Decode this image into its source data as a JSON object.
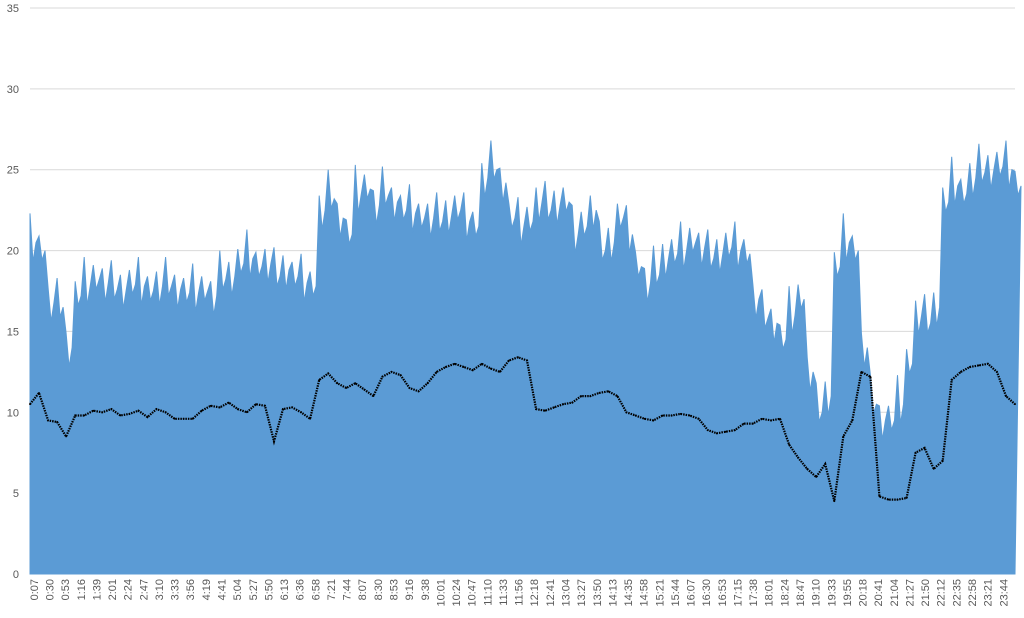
{
  "chart_data": {
    "type": "area",
    "title": "",
    "xlabel": "",
    "ylabel": "",
    "ylim": [
      0,
      35
    ],
    "y_ticks": [
      0,
      5,
      10,
      15,
      20,
      25,
      30,
      35
    ],
    "grid": true,
    "legend": "none",
    "x_tick_labels": [
      "0:07",
      "0:30",
      "0:53",
      "1:16",
      "1:39",
      "2:01",
      "2:24",
      "2:47",
      "3:10",
      "3:33",
      "3:56",
      "4:19",
      "4:41",
      "5:04",
      "5:27",
      "5:50",
      "6:13",
      "6:36",
      "6:58",
      "7:21",
      "7:44",
      "8:07",
      "8:30",
      "8:53",
      "9:16",
      "9:38",
      "10:01",
      "10:24",
      "10:47",
      "11:10",
      "11:33",
      "11:56",
      "12:18",
      "12:41",
      "13:04",
      "13:27",
      "13:50",
      "14:13",
      "14:35",
      "14:58",
      "15:21",
      "15:44",
      "16:07",
      "16:30",
      "16:53",
      "17:15",
      "17:38",
      "18:01",
      "18:24",
      "18:47",
      "19:10",
      "19:33",
      "19:55",
      "20:18",
      "20:41",
      "21:04",
      "21:27",
      "21:50",
      "22:12",
      "22:35",
      "22:58",
      "23:21",
      "23:44"
    ],
    "series": [
      {
        "style": "filled-area",
        "color": "#5b9bd5",
        "values": [
          20.5,
          20.0,
          16.8,
          16.5,
          14.0,
          17.2,
          17.8,
          18.2,
          18.0,
          17.6,
          17.6,
          17.9,
          17.8,
          17.5,
          17.8,
          17.8,
          17.6,
          17.4,
          17.4,
          17.5,
          17.2,
          18.2,
          18.4,
          19.2,
          19.5,
          19.0,
          19.2,
          18.4,
          18.8,
          18.4,
          18.0,
          17.8,
          22.5,
          23.2,
          22.0,
          21.0,
          23.5,
          23.8,
          22.8,
          23.4,
          23.0,
          22.5,
          22.3,
          22.0,
          22.0,
          21.8,
          22.2,
          22.5,
          21.8,
          21.5,
          24.5,
          25.0,
          24.2,
          22.0,
          21.5,
          21.8,
          23.0,
          22.5,
          22.8,
          23.0,
          21.0,
          21.5,
          22.5,
          20.0,
          20.5,
          22.0,
          21.0,
          19.0,
          18.0,
          18.5,
          19.5,
          19.8,
          20.0,
          20.5,
          20.2,
          19.5,
          19.8,
          20.2,
          20.0,
          19.8,
          17.0,
          15.8,
          15.5,
          14.5,
          16.0,
          17.0,
          12.5,
          10.0,
          11.0,
          19.0,
          20.5,
          20.0,
          14.0,
          10.5,
          9.5,
          9.5,
          10.5,
          13.0,
          16.0,
          15.5,
          16.5,
          23.0,
          24.0,
          23.5,
          24.5,
          24.8,
          25.0,
          25.2,
          25.0,
          24.0
        ]
      },
      {
        "style": "dotted-line",
        "color": "#000000",
        "values": [
          10.5,
          11.2,
          9.5,
          9.4,
          8.5,
          9.8,
          9.8,
          10.1,
          10.0,
          10.2,
          9.8,
          9.9,
          10.1,
          9.7,
          10.2,
          10.0,
          9.6,
          9.6,
          9.6,
          10.1,
          10.4,
          10.3,
          10.6,
          10.2,
          10.0,
          10.5,
          10.4,
          8.2,
          10.2,
          10.3,
          10.0,
          9.6,
          12.0,
          12.4,
          11.8,
          11.5,
          11.8,
          11.4,
          11.0,
          12.2,
          12.5,
          12.3,
          11.5,
          11.3,
          11.8,
          12.5,
          12.8,
          13.0,
          12.8,
          12.6,
          13.0,
          12.7,
          12.5,
          13.2,
          13.4,
          13.2,
          10.2,
          10.1,
          10.3,
          10.5,
          10.6,
          11.0,
          11.0,
          11.2,
          11.3,
          11.0,
          10.0,
          9.8,
          9.6,
          9.5,
          9.8,
          9.8,
          9.9,
          9.8,
          9.6,
          8.9,
          8.7,
          8.8,
          8.9,
          9.3,
          9.3,
          9.6,
          9.5,
          9.6,
          8.0,
          7.2,
          6.5,
          6.0,
          6.8,
          4.5,
          8.5,
          9.5,
          12.5,
          12.2,
          4.8,
          4.6,
          4.6,
          4.7,
          7.5,
          7.8,
          6.5,
          7.0,
          12.0,
          12.5,
          12.8,
          12.9,
          13.0,
          12.5,
          11.0,
          10.5
        ]
      }
    ]
  }
}
